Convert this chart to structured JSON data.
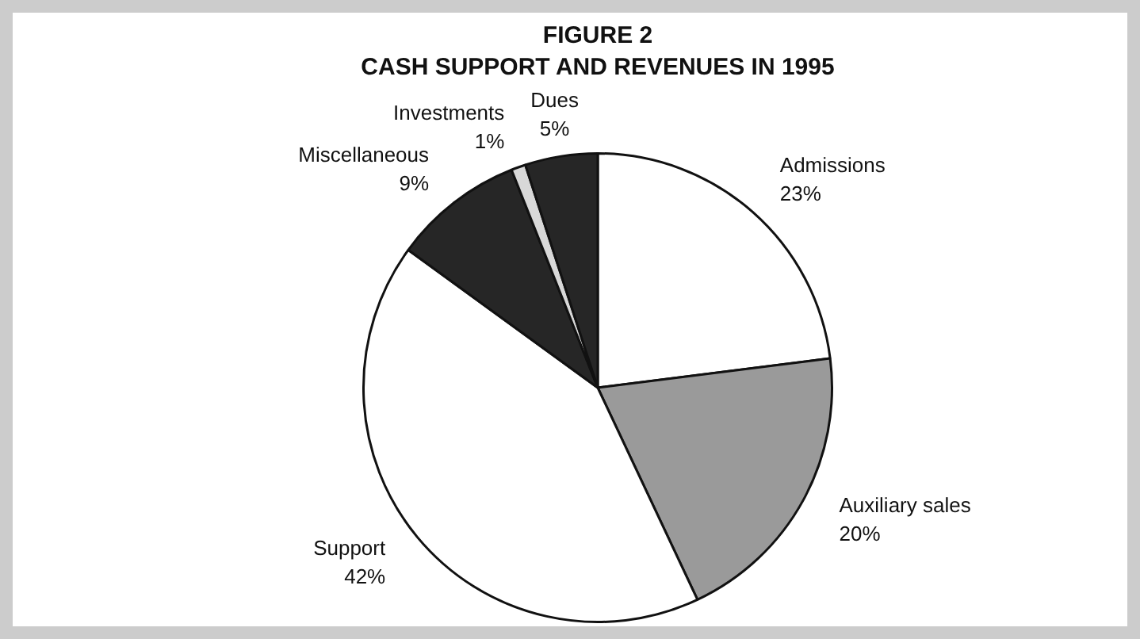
{
  "chart_data": {
    "type": "pie",
    "title": "FIGURE 2",
    "subtitle": "CASH SUPPORT AND REVENUES IN 1995",
    "categories": [
      "Admissions",
      "Auxiliary sales",
      "Support",
      "Miscellaneous",
      "Investments",
      "Dues"
    ],
    "values": [
      23,
      20,
      42,
      9,
      1,
      5
    ],
    "value_labels": [
      "23%",
      "20%",
      "42%",
      "9%",
      "1%",
      "5%"
    ],
    "colors": [
      "#ffffff",
      "#9a9a9a",
      "#ffffff",
      "#262626",
      "#d8d8d8",
      "#262626"
    ],
    "legend": false
  }
}
